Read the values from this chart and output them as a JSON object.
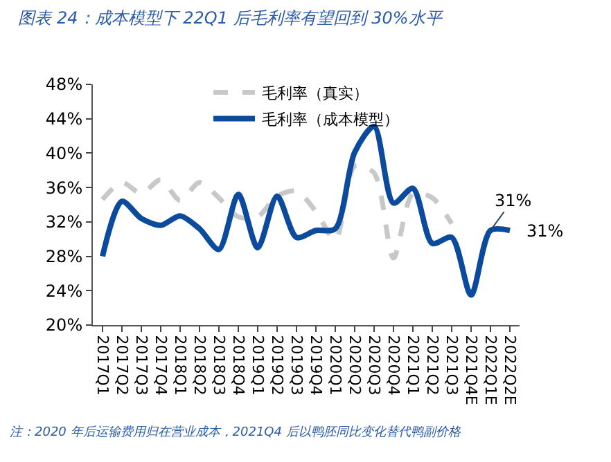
{
  "chart_data": {
    "type": "line",
    "title": "图表 24：成本模型下 22Q1 后毛利率有望回到 30%水平",
    "categories": [
      "2017Q1",
      "2017Q2",
      "2017Q3",
      "2017Q4",
      "2018Q1",
      "2018Q2",
      "2018Q3",
      "2018Q4",
      "2019Q1",
      "2019Q2",
      "2019Q3",
      "2019Q4",
      "2020Q1",
      "2020Q2",
      "2020Q3",
      "2020Q4",
      "2021Q1",
      "2021Q2",
      "2021Q3",
      "2021Q4E",
      "2022Q1E",
      "2022Q2E"
    ],
    "series": [
      {
        "name": "毛利率（真实）",
        "color": "#c8c8c8",
        "line_style": "dashed",
        "values": [
          34.6,
          36.6,
          35.3,
          36.9,
          34.5,
          36.6,
          34.8,
          32.6,
          32.6,
          35.0,
          35.6,
          33.2,
          29.9,
          38.5,
          37.7,
          27.8,
          35.3,
          34.8,
          31.8,
          null,
          null,
          null
        ]
      },
      {
        "name": "毛利率（成本模型）",
        "color": "#0b4a9c",
        "line_style": "solid",
        "values": [
          28.0,
          34.4,
          32.4,
          31.6,
          32.7,
          31.2,
          28.8,
          35.2,
          29.0,
          35.0,
          30.2,
          31.0,
          31.2,
          40.1,
          43.1,
          34.2,
          35.9,
          29.5,
          30.2,
          23.5,
          31,
          31
        ],
        "value_labels": [
          null,
          null,
          null,
          null,
          null,
          null,
          null,
          null,
          null,
          null,
          null,
          null,
          null,
          null,
          null,
          null,
          null,
          null,
          null,
          null,
          "31%",
          "31%"
        ]
      }
    ],
    "ylim": [
      20,
      48
    ],
    "yticks": [
      {
        "value": 20,
        "label": "20%"
      },
      {
        "value": 24,
        "label": "24%"
      },
      {
        "value": 28,
        "label": "28%"
      },
      {
        "value": 32,
        "label": "32%"
      },
      {
        "value": 36,
        "label": "36%"
      },
      {
        "value": 40,
        "label": "40%"
      },
      {
        "value": 44,
        "label": "44%"
      },
      {
        "value": 48,
        "label": "48%"
      }
    ],
    "legend": "top",
    "marker": "none",
    "annotations": [
      "注：2020 年后运输费用归在营业成本，2021Q4 后以鸭胚同比变化替代鸭副价格"
    ]
  }
}
